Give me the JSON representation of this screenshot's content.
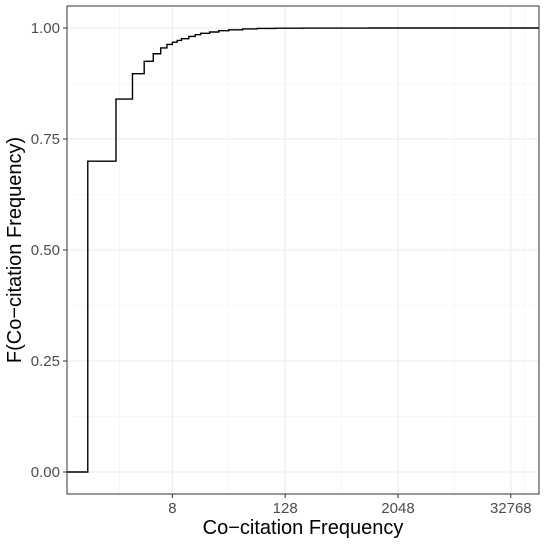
{
  "chart_data": {
    "type": "line",
    "title": "",
    "xlabel": "Co−citation Frequency",
    "ylabel": "F(Co−citation Frequency)",
    "x_scale": "log2",
    "xlim": [
      0.6,
      65536
    ],
    "ylim": [
      0,
      1
    ],
    "grid": true,
    "x_ticks": [
      {
        "value": 8,
        "label": "8"
      },
      {
        "value": 128,
        "label": "128"
      },
      {
        "value": 2048,
        "label": "2048"
      },
      {
        "value": 32768,
        "label": "32768"
      }
    ],
    "y_ticks": [
      {
        "value": 0.0,
        "label": "0.00"
      },
      {
        "value": 0.25,
        "label": "0.25"
      },
      {
        "value": 0.5,
        "label": "0.50"
      },
      {
        "value": 0.75,
        "label": "0.75"
      },
      {
        "value": 1.0,
        "label": "1.00"
      }
    ],
    "line_color": "#000000",
    "series": [
      {
        "step": true,
        "x": [
          0.6,
          1,
          2,
          3,
          4,
          5,
          6,
          7,
          8,
          9,
          10,
          12,
          14,
          16,
          20,
          25,
          32,
          45,
          64,
          100,
          200,
          400,
          1000,
          65536
        ],
        "y": [
          0.0,
          0.7,
          0.84,
          0.897,
          0.925,
          0.942,
          0.955,
          0.963,
          0.968,
          0.972,
          0.976,
          0.981,
          0.985,
          0.988,
          0.991,
          0.994,
          0.996,
          0.998,
          0.999,
          0.9995,
          0.9998,
          0.9999,
          1.0,
          1.0
        ]
      }
    ]
  }
}
